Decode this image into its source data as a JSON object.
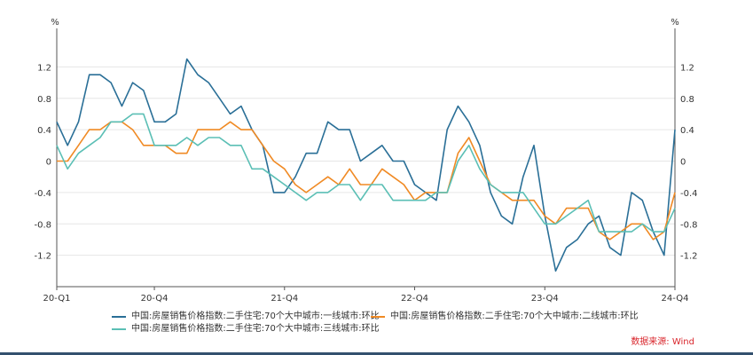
{
  "chart_data": {
    "type": "line",
    "title": "",
    "y_unit_left": "%",
    "y_unit_right": "%",
    "ylim": [
      -1.6,
      1.6
    ],
    "y_ticks": [
      1.2,
      0.8,
      0.4,
      0,
      -0.4,
      -0.8,
      -1.2
    ],
    "y_tick_labels": [
      "1.2",
      "0.8",
      "0.4",
      "0",
      "-0.4",
      "-0.8",
      "-1.2"
    ],
    "x_tick_labels": [
      "20-Q1",
      "20-Q4",
      "21-Q4",
      "22-Q4",
      "23-Q4",
      "24-Q4"
    ],
    "x_tick_months": [
      0,
      9,
      21,
      33,
      45,
      57
    ],
    "x_start": "2020-01",
    "x_end": "2024-10",
    "series": [
      {
        "name": "中国:房屋销售价格指数:二手住宅:70个大中城市:一线城市:环比",
        "color": "#2a6f97",
        "values": [
          0.5,
          0.2,
          0.5,
          1.1,
          1.1,
          1.0,
          0.7,
          1.0,
          0.9,
          0.5,
          0.5,
          0.6,
          1.3,
          1.1,
          1.0,
          0.8,
          0.6,
          0.7,
          0.4,
          0.2,
          -0.4,
          -0.4,
          -0.2,
          0.1,
          0.1,
          0.5,
          0.4,
          0.4,
          0.0,
          0.1,
          0.2,
          0.0,
          0.0,
          -0.3,
          -0.4,
          -0.5,
          0.4,
          0.7,
          0.5,
          0.2,
          -0.4,
          -0.7,
          -0.8,
          -0.2,
          0.2,
          -0.7,
          -1.4,
          -1.1,
          -1.0,
          -0.8,
          -0.7,
          -1.1,
          -1.2,
          -0.4,
          -0.5,
          -0.9,
          -1.2,
          0.4
        ]
      },
      {
        "name": "中国:房屋销售价格指数:二手住宅:70个大中城市:二线城市:环比",
        "color": "#f08a24",
        "values": [
          0.0,
          0.0,
          0.2,
          0.4,
          0.4,
          0.5,
          0.5,
          0.4,
          0.2,
          0.2,
          0.2,
          0.1,
          0.1,
          0.4,
          0.4,
          0.4,
          0.5,
          0.4,
          0.4,
          0.2,
          0.0,
          -0.1,
          -0.3,
          -0.4,
          -0.3,
          -0.2,
          -0.3,
          -0.1,
          -0.3,
          -0.3,
          -0.1,
          -0.2,
          -0.3,
          -0.5,
          -0.4,
          -0.4,
          -0.4,
          0.1,
          0.3,
          0.0,
          -0.3,
          -0.4,
          -0.5,
          -0.5,
          -0.5,
          -0.7,
          -0.8,
          -0.6,
          -0.6,
          -0.6,
          -0.9,
          -1.0,
          -0.9,
          -0.8,
          -0.8,
          -1.0,
          -0.9,
          -0.4
        ]
      },
      {
        "name": "中国:房屋销售价格指数:二手住宅:70个大中城市:三线城市:环比",
        "color": "#5bbfb5",
        "values": [
          0.2,
          -0.1,
          0.1,
          0.2,
          0.3,
          0.5,
          0.5,
          0.6,
          0.6,
          0.2,
          0.2,
          0.2,
          0.3,
          0.2,
          0.3,
          0.3,
          0.2,
          0.2,
          -0.1,
          -0.1,
          -0.2,
          -0.3,
          -0.4,
          -0.5,
          -0.4,
          -0.4,
          -0.3,
          -0.3,
          -0.5,
          -0.3,
          -0.3,
          -0.5,
          -0.5,
          -0.5,
          -0.5,
          -0.4,
          -0.4,
          0.0,
          0.2,
          -0.1,
          -0.3,
          -0.4,
          -0.4,
          -0.4,
          -0.6,
          -0.8,
          -0.8,
          -0.7,
          -0.6,
          -0.5,
          -0.9,
          -0.9,
          -0.9,
          -0.9,
          -0.8,
          -0.9,
          -0.9,
          -0.6
        ]
      }
    ],
    "grid": true,
    "legend_position": "bottom"
  },
  "source_text": "数据来源: Wind"
}
